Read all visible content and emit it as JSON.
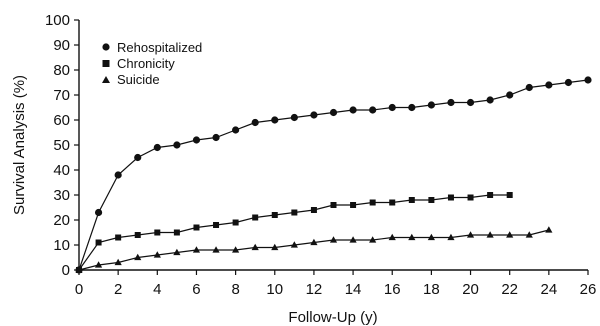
{
  "chart_data": {
    "type": "line",
    "xlabel": "Follow-Up (y)",
    "ylabel": "Survival Analysis (%)",
    "xlim": [
      0,
      26
    ],
    "ylim": [
      0,
      100
    ],
    "xticks": [
      "0",
      "2",
      "4",
      "6",
      "8",
      "10",
      "12",
      "14",
      "16",
      "18",
      "20",
      "22",
      "24",
      "26"
    ],
    "yticks": [
      "0",
      "10",
      "20",
      "30",
      "40",
      "50",
      "60",
      "70",
      "80",
      "90",
      "100"
    ],
    "grid": false,
    "legend_position": "top-left",
    "series": [
      {
        "name": "Rehospitalized",
        "marker": "circle",
        "x": [
          0,
          1,
          2,
          3,
          4,
          5,
          6,
          7,
          8,
          9,
          10,
          11,
          12,
          13,
          14,
          15,
          16,
          17,
          18,
          19,
          20,
          21,
          22,
          23,
          24,
          25,
          26
        ],
        "y": [
          0,
          23,
          38,
          45,
          49,
          50,
          52,
          53,
          56,
          59,
          60,
          61,
          62,
          63,
          64,
          64,
          65,
          65,
          66,
          67,
          67,
          68,
          70,
          73,
          74,
          75,
          76
        ]
      },
      {
        "name": "Chronicity",
        "marker": "square",
        "x": [
          0,
          1,
          2,
          3,
          4,
          5,
          6,
          7,
          8,
          9,
          10,
          11,
          12,
          13,
          14,
          15,
          16,
          17,
          18,
          19,
          20,
          21,
          22
        ],
        "y": [
          0,
          11,
          13,
          14,
          15,
          15,
          17,
          18,
          19,
          21,
          22,
          23,
          24,
          26,
          26,
          27,
          27,
          28,
          28,
          29,
          29,
          30,
          30
        ]
      },
      {
        "name": "Suicide",
        "marker": "triangle",
        "x": [
          0,
          1,
          2,
          3,
          4,
          5,
          6,
          7,
          8,
          9,
          10,
          11,
          12,
          13,
          14,
          15,
          16,
          17,
          18,
          19,
          20,
          21,
          22,
          23,
          24
        ],
        "y": [
          0,
          2,
          3,
          5,
          6,
          7,
          8,
          8,
          8,
          9,
          9,
          10,
          11,
          12,
          12,
          12,
          13,
          13,
          13,
          13,
          14,
          14,
          14,
          14,
          16
        ]
      }
    ]
  }
}
